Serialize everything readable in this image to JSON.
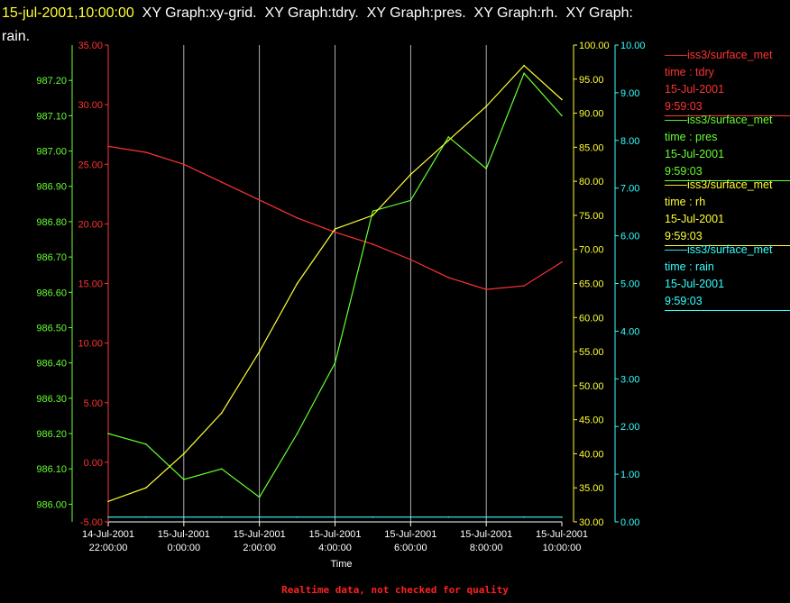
{
  "header": {
    "timestamp": "15-jul-2001,10:00:00",
    "graph_labels": [
      "XY Graph:xy-grid.",
      "XY Graph:tdry.",
      "XY Graph:pres.",
      "XY Graph:rh.",
      "XY Graph:"
    ],
    "wrap_label": "rain."
  },
  "footer": {
    "note": "Realtime data, not checked for quality"
  },
  "colors": {
    "tdry": "#ff3333",
    "pres": "#66ff33",
    "rh": "#ffff33",
    "rain": "#33ffff",
    "grid": "#ffffff"
  },
  "chart_data": {
    "type": "line",
    "xlabel": "Time",
    "x_ticks": [
      {
        "date": "14-Jul-2001",
        "time": "22:00:00"
      },
      {
        "date": "15-Jul-2001",
        "time": "0:00:00"
      },
      {
        "date": "15-Jul-2001",
        "time": "2:00:00"
      },
      {
        "date": "15-Jul-2001",
        "time": "4:00:00"
      },
      {
        "date": "15-Jul-2001",
        "time": "6:00:00"
      },
      {
        "date": "15-Jul-2001",
        "time": "8:00:00"
      },
      {
        "date": "15-Jul-2001",
        "time": "10:00:00"
      }
    ],
    "x_hours": [
      22,
      23,
      24,
      25,
      26,
      27,
      28,
      29,
      30,
      31,
      32,
      33,
      34
    ],
    "axes": {
      "tdry": {
        "ylim": [
          -5,
          35
        ],
        "ticks": [
          "35.00",
          "30.00",
          "25.00",
          "20.00",
          "15.00",
          "10.00",
          "5.00",
          "0.00",
          "-5.00"
        ]
      },
      "pres": {
        "ylim": [
          985.95,
          987.3
        ],
        "ticks": [
          "987.20",
          "987.10",
          "987.00",
          "986.90",
          "986.80",
          "986.70",
          "986.60",
          "986.50",
          "986.40",
          "986.30",
          "986.20",
          "986.10",
          "986.00"
        ]
      },
      "rh": {
        "ylim": [
          30,
          100
        ],
        "ticks": [
          "100.00",
          "95.00",
          "90.00",
          "85.00",
          "80.00",
          "75.00",
          "70.00",
          "65.00",
          "60.00",
          "55.00",
          "50.00",
          "45.00",
          "40.00",
          "35.00",
          "30.00"
        ]
      },
      "rain": {
        "ylim": [
          0,
          10
        ],
        "ticks": [
          "10.00",
          "9.00",
          "8.00",
          "7.00",
          "6.00",
          "5.00",
          "4.00",
          "3.00",
          "2.00",
          "1.00",
          "0.00"
        ]
      }
    },
    "series": [
      {
        "key": "tdry",
        "values": [
          26.5,
          26.0,
          25.0,
          23.5,
          22.0,
          20.5,
          19.3,
          18.3,
          17.0,
          15.5,
          14.5,
          14.8,
          16.8
        ]
      },
      {
        "key": "pres",
        "values": [
          986.2,
          986.17,
          986.07,
          986.1,
          986.02,
          986.2,
          986.4,
          986.83,
          986.86,
          987.04,
          986.95,
          987.22,
          987.1
        ]
      },
      {
        "key": "rh",
        "values": [
          33,
          35,
          40,
          46,
          55,
          65,
          73,
          75,
          81,
          86,
          91,
          97,
          92
        ]
      },
      {
        "key": "rain",
        "values": [
          0.1,
          0.1,
          0.1,
          0.1,
          0.1,
          0.1,
          0.1,
          0.1,
          0.1,
          0.1,
          0.1,
          0.1,
          0.1
        ]
      }
    ],
    "legend": [
      {
        "key": "tdry",
        "name": "iss3/surface_met",
        "field": "time : tdry",
        "date": "15-Jul-2001",
        "time": "9:59:03"
      },
      {
        "key": "pres",
        "name": "iss3/surface_met",
        "field": "time : pres",
        "date": "15-Jul-2001",
        "time": "9:59:03"
      },
      {
        "key": "rh",
        "name": "iss3/surface_met",
        "field": "time : rh",
        "date": "15-Jul-2001",
        "time": "9:59:03"
      },
      {
        "key": "rain",
        "name": "iss3/surface_met",
        "field": "time : rain",
        "date": "15-Jul-2001",
        "time": "9:59:03"
      }
    ]
  }
}
